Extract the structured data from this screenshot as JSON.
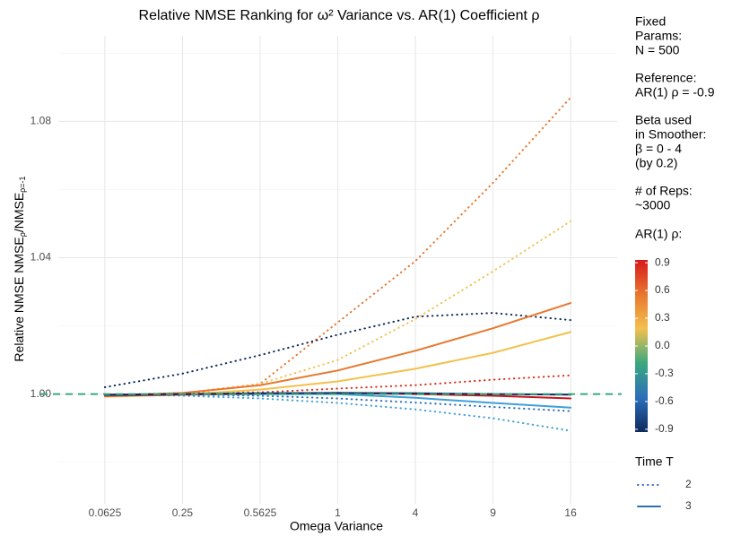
{
  "chart_data": {
    "type": "line",
    "title": "Relative NMSE Ranking for ω² Variance vs. AR(1) Coefficient ρ",
    "xlabel": "Omega Variance",
    "ylabel": {
      "text": "Relative NMSE ",
      "numerator": "NMSE",
      "numerator_sub": "ρ",
      "denominator": "/NMSE",
      "denominator_sub": "ρ=-1"
    },
    "categories": [
      "0.0625",
      "0.25",
      "0.5625",
      "1",
      "4",
      "9",
      "16"
    ],
    "ylim": [
      0.9678,
      1.1051
    ],
    "yticks": [
      {
        "value": 1,
        "label": "1.00"
      },
      1.04,
      1.08
    ],
    "yminor": [
      0.98,
      1.02,
      1.06,
      1.1
    ],
    "grid": true,
    "hline": {
      "value": 1,
      "color": "#3aa87f"
    },
    "series": [
      {
        "color": "#e8772e",
        "linetype": "dotted",
        "values": [
          0.9995,
          1.0002,
          1.003,
          1.021,
          1.039,
          1.062,
          1.087
        ]
      },
      {
        "color": "#f2c14e",
        "linetype": "dotted",
        "values": [
          0.9995,
          1.0,
          1.003,
          1.01,
          1.022,
          1.036,
          1.0507
        ]
      },
      {
        "color": "#0d2a5c",
        "linetype": "dotted",
        "values": [
          1.002,
          1.006,
          1.0114,
          1.0174,
          1.0227,
          1.0238,
          1.0217
        ]
      },
      {
        "color": "#d7301f",
        "linetype": "dotted",
        "values": [
          0.9997,
          1.0003,
          1.0005,
          1.0016,
          1.0026,
          1.0042,
          1.0055
        ]
      },
      {
        "color": "#3f9fd8",
        "linetype": "dotted",
        "values": [
          1.0,
          0.9995,
          0.9987,
          0.9974,
          0.9955,
          0.9929,
          0.9892
        ]
      },
      {
        "color": "#2c6fbb",
        "linetype": "dotted",
        "values": [
          0.9998,
          0.9999,
          0.9995,
          0.9987,
          0.9975,
          0.9962,
          0.995
        ]
      },
      {
        "color": "#e8772e",
        "linetype": "solid",
        "values": [
          0.9995,
          1.0003,
          1.0026,
          1.0069,
          1.0127,
          1.0193,
          1.0267
        ]
      },
      {
        "color": "#f2c14e",
        "linetype": "solid",
        "values": [
          0.9992,
          0.9998,
          1.0013,
          1.0037,
          1.0074,
          1.0121,
          1.0182
        ]
      },
      {
        "color": "#c4161c",
        "linetype": "solid",
        "values": [
          0.9995,
          0.9998,
          1.0,
          1.0003,
          1.0,
          0.9995,
          0.9987
        ]
      },
      {
        "color": "#3f9fd8",
        "linetype": "solid",
        "values": [
          0.9997,
          1.0,
          1.0,
          1.0,
          0.9989,
          0.9974,
          0.996
        ]
      },
      {
        "color": "#0d2a5c",
        "linetype": "solid",
        "values": [
          0.9998,
          1.0,
          1.0002,
          1.0003,
          1.0002,
          1.0,
          0.9998
        ]
      }
    ],
    "notes": [
      [
        "Fixed",
        "Params:",
        "N = 500"
      ],
      [
        "Reference:",
        "AR(1) ρ = -0.9"
      ],
      [
        "Beta used",
        "in Smoother:",
        "β = 0 - 4",
        "(by 0.2)"
      ],
      [
        "# of Reps:",
        "~3000"
      ]
    ],
    "colorbar": {
      "title": "AR(1) ρ:",
      "lim": [
        -0.93,
        0.93
      ],
      "ticks": [
        0.9,
        0.6,
        0.3,
        {
          "value": 0,
          "label": "0.0"
        },
        -0.3,
        -0.6,
        -0.9
      ],
      "colors": [
        "#0d2a5c",
        "#2c6fbb",
        "#3aa87f",
        "#f2c14e",
        "#e8772e",
        "#d7191c"
      ]
    },
    "linetype_legend": {
      "title": "Time T",
      "items": [
        {
          "label": "2",
          "linetype": "dotted",
          "color": "#2c6fbb"
        },
        {
          "label": "3",
          "linetype": "solid",
          "color": "#2c6fbb"
        }
      ]
    }
  }
}
